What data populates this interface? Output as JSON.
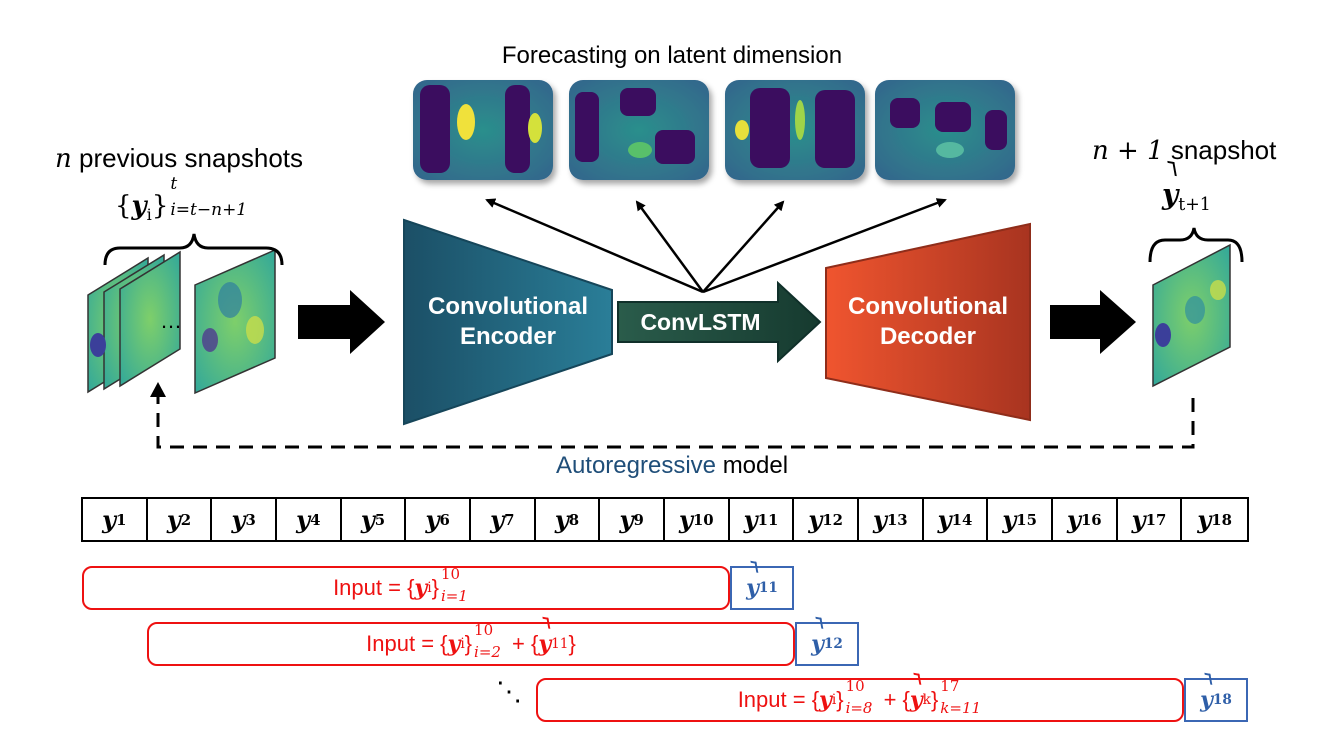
{
  "colors": {
    "encoder": "#1e5a73",
    "convlstm": "#1f4a3c",
    "decoder": "#e04a2c",
    "input_red": "#e11111",
    "output_blue": "#2f5fa8",
    "autoregressive_blue": "#1f4e79"
  },
  "texts": {
    "latent_title": "Forecasting on latent dimension",
    "prev_snapshots": "previous snapshots",
    "prev_n": "n",
    "next_snapshot": "snapshot",
    "next_n": "n + 1",
    "set_inputs_var": "y",
    "set_inputs_sub": "i",
    "set_inputs_sup": "t",
    "set_inputs_range": "i=t−n+1",
    "yhat_var": "y",
    "yhat_sub": "t+1",
    "ellipsis": "…",
    "encoder_line1": "Convolutional",
    "encoder_line2": "Encoder",
    "convlstm": "ConvLSTM",
    "decoder_line1": "Convolutional",
    "decoder_line2": "Decoder",
    "autoregressive_word": "Autoregressive",
    "model_word": "model",
    "dots": "⋱"
  },
  "sequence": {
    "var": "y",
    "subscripts": [
      "1",
      "2",
      "3",
      "4",
      "5",
      "6",
      "7",
      "8",
      "9",
      "10",
      "11",
      "12",
      "13",
      "14",
      "15",
      "16",
      "17",
      "18"
    ]
  },
  "windows": [
    {
      "prefix": "Input = {",
      "var": "y",
      "sub": "i",
      "close": "}",
      "sup": "10",
      "range": "i=1",
      "extra": "",
      "extra2": "",
      "out_sub": "11"
    },
    {
      "prefix": "Input = {",
      "var": "y",
      "sub": "i",
      "close": "}",
      "sup": "10",
      "range": "i=2",
      "extra": "+ {",
      "extra_var": "y",
      "extra_sub": "11",
      "extra_close": "}",
      "out_sub": "12"
    },
    {
      "prefix": "Input = {",
      "var": "y",
      "sub": "i",
      "close": "}",
      "sup": "10",
      "range": "i=8",
      "extra": "+ {",
      "extra_var": "y",
      "extra_sub": "k",
      "extra_close": "}",
      "extra_sup": "17",
      "extra_range": "k=11",
      "out_sub": "18"
    }
  ]
}
